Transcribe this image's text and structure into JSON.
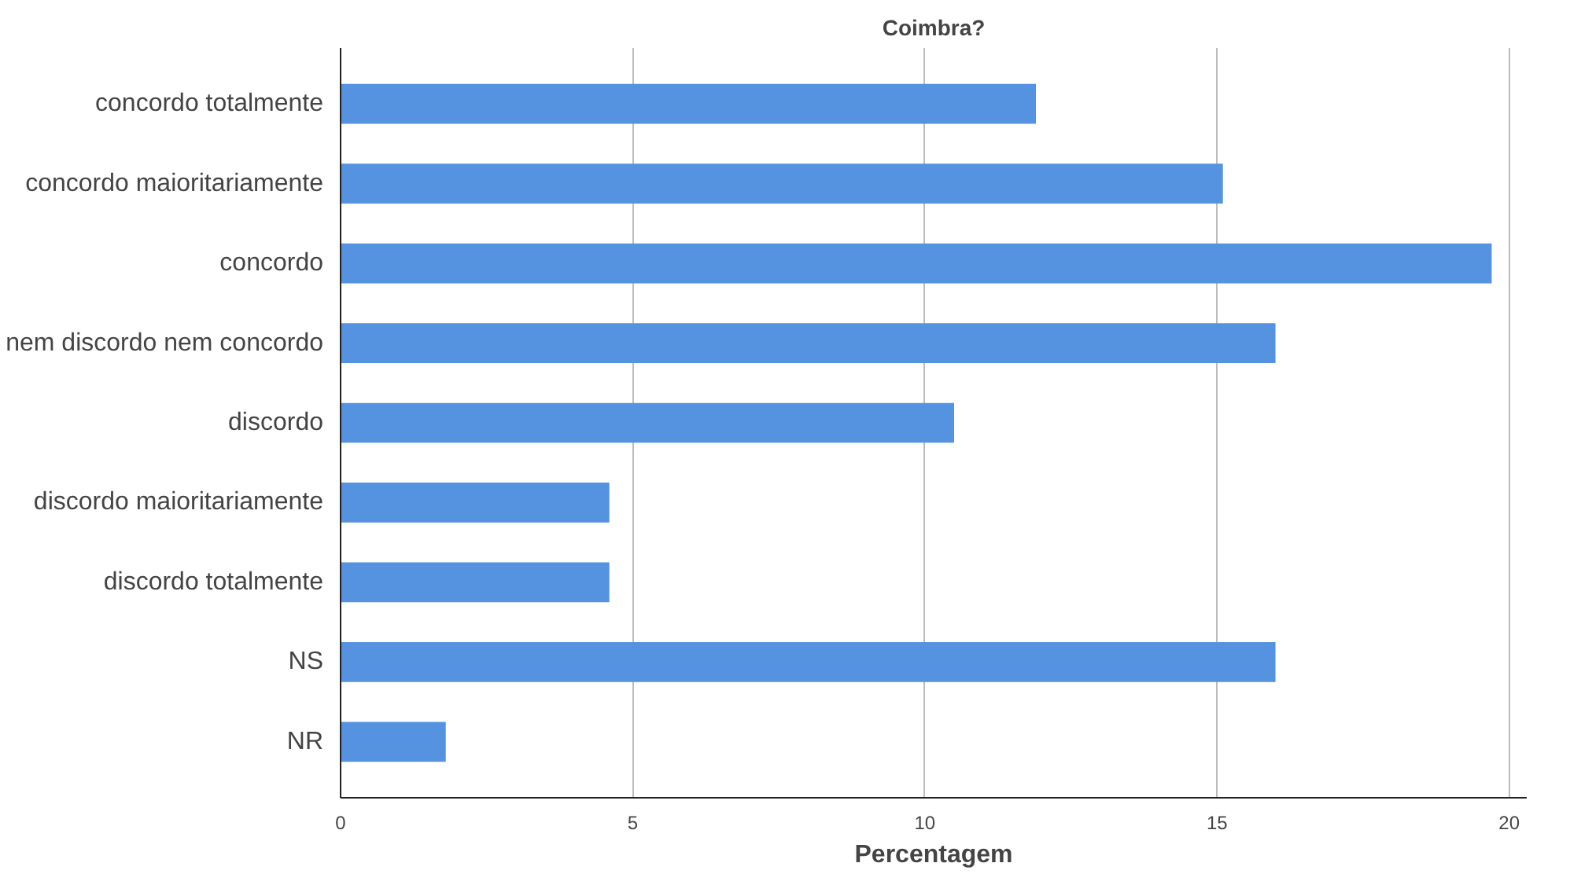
{
  "chart_data": {
    "type": "bar",
    "orientation": "horizontal",
    "title": "Coimbra?",
    "xlabel": "Percentagem",
    "categories": [
      "concordo totalmente",
      "concordo maioritariamente",
      "concordo",
      "nem discordo nem concordo",
      "discordo",
      "discordo maioritariamente",
      "discordo totalmente",
      "NS",
      "NR"
    ],
    "values": [
      11.9,
      15.1,
      19.7,
      16.0,
      10.5,
      4.6,
      4.6,
      16.0,
      1.8
    ],
    "color": "#5592e0",
    "xlim": [
      0,
      20.3
    ],
    "xticks": [
      0,
      5,
      10,
      15,
      20
    ],
    "grid": "x"
  }
}
